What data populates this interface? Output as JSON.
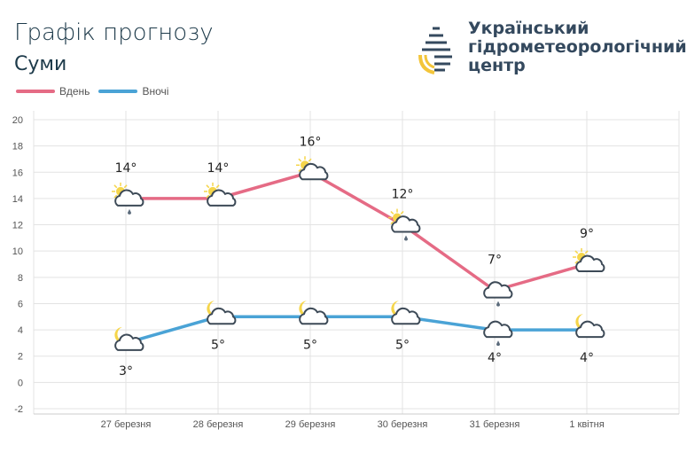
{
  "header": {
    "title": "Графік прогнозу",
    "city": "Суми"
  },
  "brand": {
    "line1": "Український",
    "line2": "гідрометеорологічний",
    "line3": "центр"
  },
  "colors": {
    "day": "#e56b85",
    "night": "#4aa3d6",
    "sun": "#f5d54a",
    "cloud": "#3d4a57"
  },
  "chart_data": {
    "type": "line",
    "categories": [
      "27 березня",
      "28 березня",
      "29 березня",
      "30 березня",
      "31 березня",
      "1 квітня"
    ],
    "series": [
      {
        "name": "Вдень",
        "values": [
          14,
          14,
          16,
          12,
          7,
          9
        ],
        "labels": [
          "14°",
          "14°",
          "16°",
          "12°",
          "7°",
          "9°"
        ],
        "icons": [
          "sun-cloud-rain",
          "sun-cloud",
          "sun-cloud",
          "sun-cloud-rain",
          "cloud-rain",
          "sun-cloud"
        ]
      },
      {
        "name": "Вночі",
        "values": [
          3,
          5,
          5,
          5,
          4,
          4
        ],
        "labels": [
          "3°",
          "5°",
          "5°",
          "5°",
          "4°",
          "4°"
        ],
        "icons": [
          "moon-cloud",
          "moon-cloud",
          "moon-cloud",
          "moon-cloud",
          "cloud-rain",
          "moon-cloud"
        ]
      }
    ],
    "ylim": [
      -2,
      20
    ],
    "yticks": [
      "-2",
      "0",
      "2",
      "4",
      "6",
      "8",
      "10",
      "12",
      "14",
      "16",
      "18",
      "20"
    ],
    "grid": true,
    "legend": "top-left"
  }
}
